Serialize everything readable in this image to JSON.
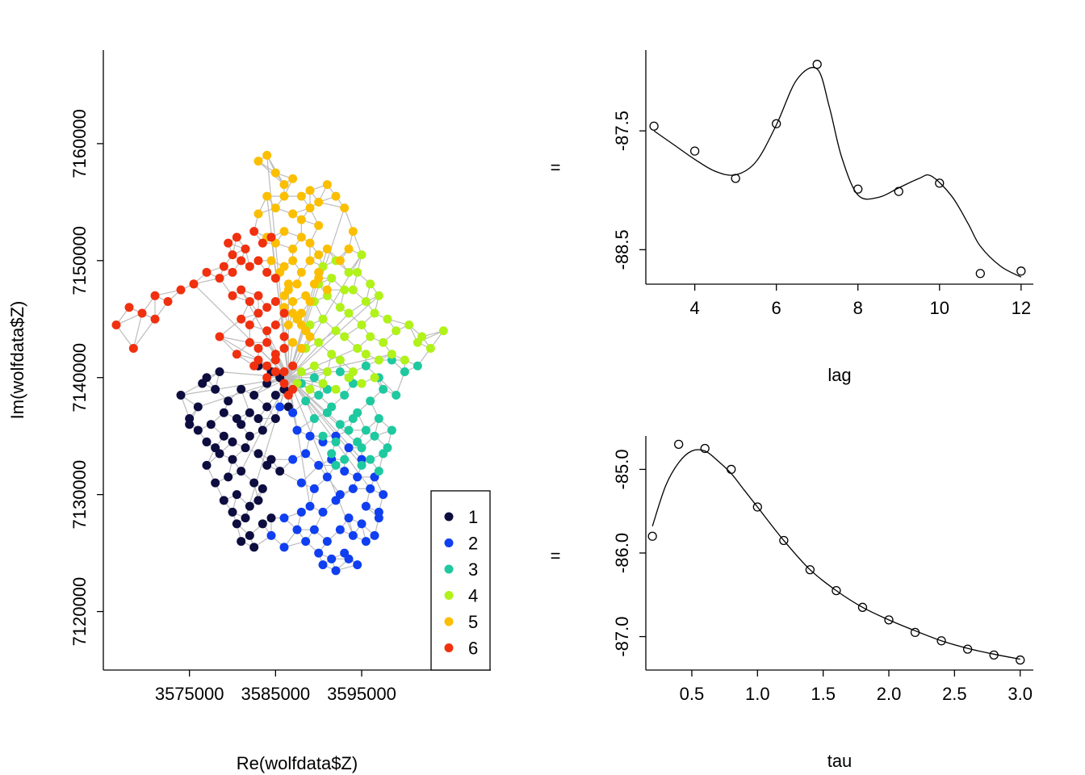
{
  "chart_data": [
    {
      "type": "scatter",
      "id": "map",
      "xlabel": "Re(wolfdata$Z)",
      "ylabel": "Im(wolfdata$Z)",
      "xlim": [
        3565000,
        3610000
      ],
      "ylim": [
        7115000,
        7168000
      ],
      "xticks": [
        3575000,
        3585000,
        3595000
      ],
      "xtick_labels": [
        "3575000",
        "3585000",
        "3595000"
      ],
      "yticks": [
        7120000,
        7130000,
        7140000,
        7150000,
        7160000
      ],
      "ytick_labels": [
        "7120000",
        "7130000",
        "7140000",
        "7150000",
        "7160000"
      ],
      "center": [
        3586500,
        7140000
      ],
      "edge_color": "#bdbdbd",
      "legend": {
        "position": "bottom-right",
        "entries": [
          "1",
          "2",
          "3",
          "4",
          "5",
          "6"
        ]
      },
      "series": [
        {
          "name": "1",
          "color": "#0d0d40",
          "x": [
            3574000,
            3575000,
            3576000,
            3577000,
            3578000,
            3579000,
            3580000,
            3581000,
            3582000,
            3583000,
            3584000,
            3585000,
            3576500,
            3578000,
            3579500,
            3581000,
            3582500,
            3584000,
            3585500,
            3577000,
            3578500,
            3580000,
            3581500,
            3583000,
            3584500,
            3578000,
            3579500,
            3581000,
            3582500,
            3584000,
            3585500,
            3579000,
            3580500,
            3582000,
            3583500,
            3580000,
            3581500,
            3583000,
            3584500,
            3580500,
            3582000,
            3583500,
            3581000,
            3582500,
            3575000,
            3576000,
            3577500,
            3579000,
            3580500,
            3582000,
            3583500,
            3585000,
            3586500,
            3577000,
            3578500,
            3583000,
            3584500,
            3586000
          ],
          "y": [
            7138500,
            7136500,
            7135500,
            7134500,
            7134000,
            7135000,
            7134500,
            7136000,
            7135000,
            7136500,
            7137500,
            7138500,
            7139500,
            7139000,
            7138000,
            7139000,
            7138500,
            7139500,
            7140000,
            7132500,
            7133500,
            7133000,
            7134000,
            7133500,
            7133000,
            7131000,
            7131500,
            7132000,
            7131000,
            7132500,
            7132000,
            7129500,
            7130000,
            7129000,
            7130500,
            7128500,
            7128000,
            7129500,
            7128000,
            7127500,
            7126500,
            7127500,
            7126000,
            7125500,
            7136000,
            7137500,
            7136000,
            7137000,
            7136500,
            7137000,
            7135500,
            7136500,
            7137500,
            7140000,
            7140500,
            7141000,
            7140500,
            7139000
          ]
        },
        {
          "name": "2",
          "color": "#0f3ff0",
          "x": [
            3587500,
            3589000,
            3590500,
            3592000,
            3593500,
            3595000,
            3596500,
            3597500,
            3587000,
            3588500,
            3590000,
            3591500,
            3593000,
            3594500,
            3596000,
            3597000,
            3588000,
            3589500,
            3591000,
            3592500,
            3594000,
            3595500,
            3597000,
            3589000,
            3590500,
            3592000,
            3593500,
            3595000,
            3596500,
            3589500,
            3591000,
            3592500,
            3594000,
            3595500,
            3590000,
            3591500,
            3593000,
            3594500,
            3590500,
            3592000,
            3593500,
            3585500,
            3587000,
            3586000,
            3587500,
            3588500,
            3584500,
            3586000,
            3588000
          ],
          "y": [
            7135500,
            7135000,
            7134500,
            7135000,
            7134000,
            7133000,
            7131500,
            7130000,
            7133000,
            7133500,
            7132500,
            7133000,
            7132000,
            7131500,
            7130500,
            7128500,
            7131000,
            7130500,
            7131500,
            7130000,
            7130500,
            7129000,
            7128000,
            7129000,
            7128500,
            7129500,
            7128000,
            7127500,
            7126500,
            7127000,
            7126000,
            7127000,
            7126500,
            7126000,
            7125000,
            7124500,
            7125000,
            7124000,
            7124000,
            7123500,
            7124500,
            7137500,
            7137000,
            7128000,
            7127000,
            7126000,
            7126500,
            7125500,
            7128500
          ]
        },
        {
          "name": "3",
          "color": "#1ec9a0",
          "x": [
            3588000,
            3589500,
            3591000,
            3592500,
            3594000,
            3595500,
            3597000,
            3598500,
            3600000,
            3601500,
            3588500,
            3590000,
            3591500,
            3593000,
            3594500,
            3596000,
            3597500,
            3599000,
            3589500,
            3591000,
            3592500,
            3594000,
            3595500,
            3597000,
            3598500,
            3590500,
            3592000,
            3593500,
            3595000,
            3596500,
            3598000,
            3591500,
            3593000,
            3594500,
            3596000,
            3597500,
            3592000,
            3595000,
            3597000
          ],
          "y": [
            7139500,
            7140000,
            7139000,
            7140500,
            7139500,
            7141000,
            7140000,
            7141500,
            7140500,
            7141000,
            7138000,
            7138500,
            7137500,
            7138500,
            7137000,
            7138000,
            7139000,
            7138500,
            7136500,
            7137000,
            7136000,
            7136500,
            7135500,
            7136500,
            7135500,
            7135000,
            7134500,
            7135500,
            7134000,
            7135000,
            7134000,
            7133500,
            7133000,
            7134500,
            7133000,
            7133500,
            7132500,
            7132500,
            7132000
          ]
        },
        {
          "name": "4",
          "color": "#b0f21a",
          "x": [
            3588000,
            3589500,
            3591000,
            3592500,
            3594000,
            3595500,
            3597000,
            3598500,
            3600000,
            3601500,
            3603000,
            3604500,
            3588500,
            3590000,
            3591500,
            3593000,
            3594500,
            3596000,
            3597500,
            3599000,
            3600500,
            3602000,
            3589000,
            3590500,
            3592000,
            3593500,
            3595000,
            3596500,
            3598000,
            3589500,
            3591000,
            3592500,
            3594000,
            3595500,
            3597000,
            3590000,
            3591500,
            3593000,
            3594500,
            3596000,
            3590500,
            3592000,
            3593500,
            3595000,
            3587500,
            3589000,
            3590500,
            3592000,
            3593500,
            3595000,
            3596500
          ],
          "y": [
            7140500,
            7141000,
            7140500,
            7141500,
            7140500,
            7142000,
            7141500,
            7142000,
            7141500,
            7143000,
            7142500,
            7144000,
            7142500,
            7143000,
            7142000,
            7143500,
            7142500,
            7143500,
            7143000,
            7144000,
            7144500,
            7143500,
            7144500,
            7145000,
            7144000,
            7145500,
            7144500,
            7145500,
            7145000,
            7146500,
            7147000,
            7146000,
            7147500,
            7146500,
            7147000,
            7148000,
            7148500,
            7147500,
            7149000,
            7148000,
            7149500,
            7150000,
            7149000,
            7150500,
            7139500,
            7139000,
            7139500,
            7139000,
            7140000,
            7139500,
            7140000
          ]
        },
        {
          "name": "5",
          "color": "#fbbf00",
          "x": [
            3583000,
            3584000,
            3585000,
            3586000,
            3587000,
            3588000,
            3589000,
            3590000,
            3591000,
            3592000,
            3593000,
            3594000,
            3584000,
            3585000,
            3586000,
            3587000,
            3588000,
            3589000,
            3590000,
            3591000,
            3586000,
            3587000,
            3588000,
            3589000,
            3590000,
            3586500,
            3587500,
            3588500,
            3589500,
            3586000,
            3587000,
            3588000,
            3589000,
            3586500,
            3587500,
            3588500,
            3587000,
            3588000,
            3585000,
            3586000,
            3587000,
            3588000,
            3589000,
            3590000,
            3591000,
            3583000,
            3584000,
            3585000,
            3586000,
            3587000,
            3588000,
            3589000,
            3590000,
            3584500,
            3585500,
            3586500,
            3592500,
            3593500
          ],
          "y": [
            7158500,
            7159000,
            7157500,
            7156500,
            7157000,
            7155500,
            7156000,
            7155000,
            7156500,
            7155500,
            7154500,
            7152500,
            7152000,
            7151500,
            7152500,
            7151000,
            7152000,
            7151500,
            7150500,
            7151000,
            7149500,
            7150000,
            7149000,
            7150000,
            7148500,
            7147500,
            7148000,
            7147000,
            7148000,
            7146000,
            7146500,
            7145500,
            7146500,
            7144500,
            7145000,
            7144000,
            7143000,
            7142500,
            7148500,
            7147000,
            7145500,
            7144500,
            7143500,
            7149000,
            7147500,
            7154000,
            7155500,
            7154500,
            7155500,
            7154000,
            7153500,
            7154500,
            7153000,
            7150000,
            7149000,
            7148000,
            7150000,
            7151000
          ]
        },
        {
          "name": "6",
          "color": "#f0300f",
          "x": [
            3566500,
            3568000,
            3569500,
            3571000,
            3572500,
            3574000,
            3575500,
            3577000,
            3578500,
            3580000,
            3579500,
            3580500,
            3581500,
            3582500,
            3583500,
            3584500,
            3579000,
            3580000,
            3581000,
            3582000,
            3583000,
            3584000,
            3585000,
            3580000,
            3581000,
            3582000,
            3583000,
            3584000,
            3585000,
            3586000,
            3581000,
            3582000,
            3583000,
            3584000,
            3585000,
            3586000,
            3582000,
            3583000,
            3584000,
            3585000,
            3586000,
            3583000,
            3584000,
            3585000,
            3586000,
            3587000,
            3584000,
            3585000,
            3586000,
            3587000,
            3586500,
            3578500,
            3580500,
            3582500,
            3568500,
            3571000
          ],
          "y": [
            7144500,
            7146000,
            7145500,
            7147000,
            7146500,
            7147500,
            7148000,
            7149000,
            7148500,
            7150500,
            7151500,
            7152000,
            7151000,
            7152500,
            7151500,
            7152000,
            7149500,
            7149000,
            7150000,
            7149500,
            7150000,
            7149000,
            7148500,
            7147000,
            7147500,
            7146500,
            7147000,
            7146000,
            7146500,
            7145500,
            7145000,
            7144500,
            7145500,
            7144000,
            7144500,
            7143500,
            7143000,
            7142500,
            7143000,
            7142000,
            7142500,
            7141500,
            7141000,
            7141500,
            7140500,
            7141000,
            7140000,
            7140500,
            7139500,
            7139000,
            7138500,
            7143500,
            7142000,
            7141000,
            7142500,
            7145000
          ]
        }
      ]
    },
    {
      "type": "scatter",
      "id": "lag-plot",
      "xlabel": "lag",
      "ylabel": "",
      "yaxis_side_label": "=",
      "xlim": [
        2.8,
        12.3
      ],
      "ylim": [
        -88.79,
        -86.82
      ],
      "xticks": [
        4,
        6,
        8,
        10,
        12
      ],
      "xtick_labels": [
        "4",
        "6",
        "8",
        "10",
        "12"
      ],
      "yticks": [
        -87.5,
        -88.5
      ],
      "ytick_labels": [
        "-87.5",
        "-88.5"
      ],
      "x": [
        3,
        4,
        5,
        6,
        7,
        8,
        9,
        10,
        11,
        12
      ],
      "y": [
        -87.46,
        -87.67,
        -87.9,
        -87.44,
        -86.94,
        -87.99,
        -88.01,
        -87.94,
        -88.7,
        -88.68
      ],
      "curve": {
        "x": [
          3,
          3.5,
          4,
          4.5,
          5,
          5.5,
          6,
          6.5,
          7,
          7.3,
          7.6,
          8,
          8.5,
          9,
          9.5,
          9.8,
          10.3,
          10.7,
          11,
          11.5,
          12
        ],
        "y": [
          -87.5,
          -87.62,
          -87.74,
          -87.84,
          -87.87,
          -87.76,
          -87.45,
          -87.07,
          -86.98,
          -87.3,
          -87.72,
          -88.04,
          -88.06,
          -87.98,
          -87.9,
          -87.88,
          -88.05,
          -88.28,
          -88.47,
          -88.64,
          -88.73
        ]
      }
    },
    {
      "type": "scatter",
      "id": "tau-plot",
      "xlabel": "tau",
      "ylabel": "",
      "yaxis_side_label": "=",
      "xlim": [
        0.15,
        3.1
      ],
      "ylim": [
        -87.4,
        -84.6
      ],
      "xticks": [
        0.5,
        1.0,
        1.5,
        2.0,
        2.5,
        3.0
      ],
      "xtick_labels": [
        "0.5",
        "1.0",
        "1.5",
        "2.0",
        "2.5",
        "3.0"
      ],
      "yticks": [
        -85.0,
        -86.0,
        -87.0
      ],
      "ytick_labels": [
        "-85.0",
        "-86.0",
        "-87.0"
      ],
      "x": [
        0.2,
        0.4,
        0.6,
        0.8,
        1.0,
        1.2,
        1.4,
        1.6,
        1.8,
        2.0,
        2.2,
        2.4,
        2.6,
        2.8,
        3.0
      ],
      "y": [
        -85.8,
        -84.7,
        -84.75,
        -85.0,
        -85.45,
        -85.85,
        -86.2,
        -86.45,
        -86.65,
        -86.8,
        -86.95,
        -87.05,
        -87.15,
        -87.22,
        -87.28
      ],
      "curve": {
        "x": [
          0.2,
          0.3,
          0.4,
          0.5,
          0.6,
          0.7,
          0.8,
          0.9,
          1.0,
          1.2,
          1.4,
          1.6,
          1.8,
          2.0,
          2.2,
          2.4,
          2.6,
          2.8,
          3.0
        ],
        "y": [
          -85.68,
          -85.2,
          -84.92,
          -84.78,
          -84.78,
          -84.9,
          -85.05,
          -85.25,
          -85.45,
          -85.85,
          -86.2,
          -86.45,
          -86.65,
          -86.8,
          -86.93,
          -87.05,
          -87.14,
          -87.21,
          -87.27
        ]
      }
    }
  ]
}
